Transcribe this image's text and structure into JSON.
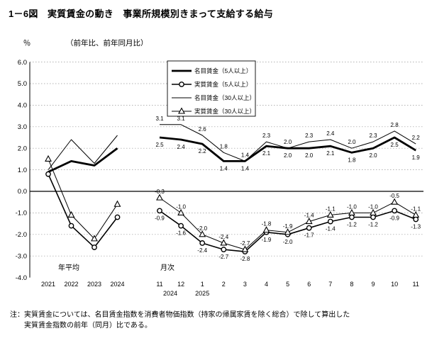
{
  "chart_data": {
    "type": "line",
    "title": "1－6図　実質賃金の動き　事業所規模別きまって支給する給与",
    "ylabel": "％",
    "subtitle": "（前年比、前年同月比）",
    "ylim": [
      -4.0,
      6.0
    ],
    "ytick_step": 1.0,
    "grid": "dotted-horizontal",
    "legend_position": "top-inside",
    "x_sections": [
      {
        "label": "年平均",
        "categories": [
          "2021",
          "2022",
          "2023",
          "2024"
        ]
      },
      {
        "label": "月次",
        "categories": [
          "11",
          "12",
          "1",
          "2",
          "3",
          "4",
          "5",
          "6",
          "7",
          "8",
          "9",
          "10",
          "11"
        ],
        "year_labels": [
          {
            "text": "2024",
            "span": "11-12"
          },
          {
            "text": "2025",
            "span": "1-11"
          }
        ]
      }
    ],
    "series": [
      {
        "name": "名目賃金（5人以上）",
        "line": "thick",
        "marker": "none",
        "label_side": "below",
        "annual": [
          0.9,
          1.4,
          1.2,
          2.0
        ],
        "monthly": [
          2.5,
          2.4,
          2.2,
          1.4,
          1.4,
          2.1,
          2.0,
          2.0,
          2.1,
          1.8,
          2.0,
          2.5,
          1.9
        ]
      },
      {
        "name": "実質賃金（5人以上）",
        "line": "medium",
        "marker": "circle",
        "label_side": "below",
        "annual": [
          0.8,
          -1.6,
          -2.6,
          -1.2
        ],
        "monthly": [
          -0.9,
          -1.6,
          -2.4,
          -2.7,
          -2.8,
          -1.9,
          -2.0,
          -1.7,
          -1.4,
          -1.2,
          -1.2,
          -0.9,
          -1.3
        ]
      },
      {
        "name": "名目賃金（30人以上）",
        "line": "thin",
        "marker": "none",
        "label_side": "above",
        "annual": [
          1.0,
          2.4,
          1.3,
          2.6
        ],
        "monthly": [
          3.1,
          3.1,
          2.6,
          1.8,
          1.4,
          2.3,
          2.0,
          2.3,
          2.4,
          2.0,
          2.3,
          2.8,
          2.2
        ]
      },
      {
        "name": "実質賃金（30人以上）",
        "line": "thin",
        "marker": "triangle",
        "label_side": "above",
        "annual": [
          1.5,
          -1.1,
          -2.2,
          -0.6
        ],
        "monthly": [
          -0.3,
          -1.0,
          -2.0,
          -2.4,
          -2.7,
          -1.8,
          -1.9,
          -1.4,
          -1.1,
          -1.0,
          -1.0,
          -0.5,
          -1.1
        ]
      }
    ],
    "annual_labels_shown": false,
    "note": {
      "prefix": "注：",
      "lines": [
        "実質賃金については、名目賃金指数を消費者物価指数（持家の帰属家賃を除く総合）で除して算出した",
        "実質賃金指数の前年（同月）比である。"
      ]
    }
  }
}
